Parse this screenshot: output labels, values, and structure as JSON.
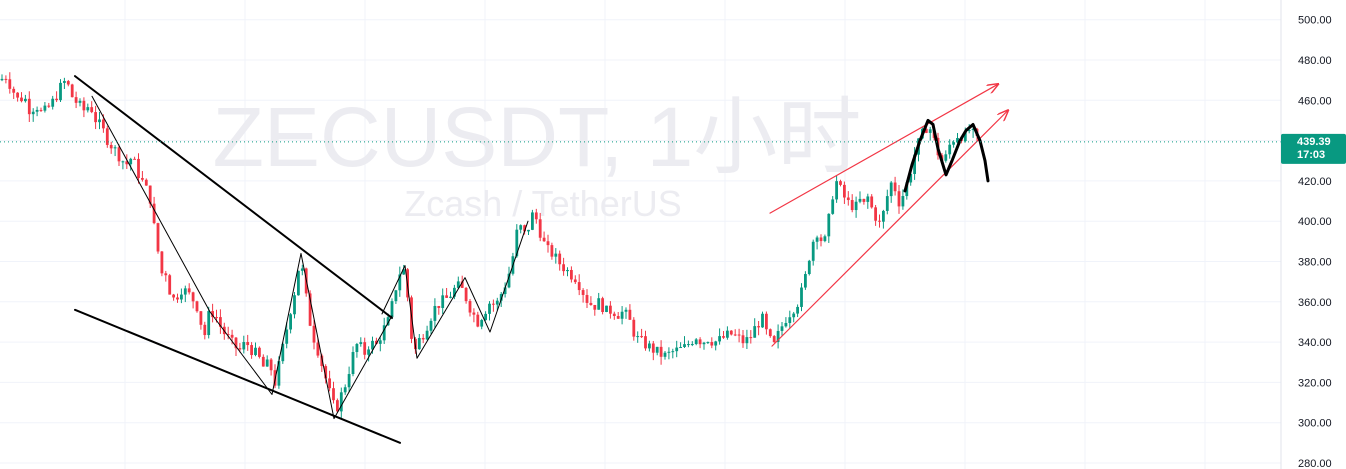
{
  "watermark": {
    "title": "ZECUSDT, 1小时",
    "subtitle": "Zcash / TetherUS"
  },
  "price_axis": {
    "current_price": "439.39",
    "countdown": "17:03"
  },
  "colors": {
    "up": "#089981",
    "down": "#f23645",
    "grid": "#f0f3fa",
    "drawing_black": "#000000",
    "drawing_red": "#f23645",
    "price_tag": "#089981"
  },
  "chart_data": {
    "type": "candlestick",
    "symbol": "ZECUSDT",
    "interval": "1小时",
    "ylim": [
      280,
      510
    ],
    "y_ticks": [
      "500.00",
      "480.00",
      "460.00",
      "440.00",
      "420.00",
      "400.00",
      "380.00",
      "360.00",
      "340.00",
      "320.00",
      "300.00",
      "280.00"
    ],
    "grid": true,
    "last_price": 439.39,
    "close_path": [
      [
        0,
        470
      ],
      [
        6,
        472
      ],
      [
        12,
        466
      ],
      [
        18,
        460
      ],
      [
        24,
        462
      ],
      [
        30,
        455
      ],
      [
        36,
        458
      ],
      [
        42,
        453
      ],
      [
        48,
        456
      ],
      [
        54,
        460
      ],
      [
        60,
        466
      ],
      [
        66,
        470
      ],
      [
        72,
        462
      ],
      [
        78,
        458
      ],
      [
        84,
        455
      ],
      [
        90,
        458
      ],
      [
        96,
        450
      ],
      [
        102,
        446
      ],
      [
        108,
        440
      ],
      [
        114,
        436
      ],
      [
        120,
        432
      ],
      [
        126,
        428
      ],
      [
        132,
        432
      ],
      [
        138,
        424
      ],
      [
        144,
        418
      ],
      [
        150,
        412
      ],
      [
        153,
        400
      ],
      [
        156,
        392
      ],
      [
        160,
        378
      ],
      [
        163,
        372
      ],
      [
        166,
        375
      ],
      [
        170,
        365
      ],
      [
        175,
        360
      ],
      [
        180,
        367
      ],
      [
        186,
        365
      ],
      [
        192,
        362
      ],
      [
        198,
        357
      ],
      [
        204,
        342
      ],
      [
        210,
        356
      ],
      [
        216,
        353
      ],
      [
        222,
        346
      ],
      [
        228,
        342
      ],
      [
        234,
        338
      ],
      [
        240,
        336
      ],
      [
        246,
        340
      ],
      [
        252,
        336
      ],
      [
        258,
        333
      ],
      [
        264,
        327
      ],
      [
        270,
        330
      ],
      [
        274,
        318
      ],
      [
        278,
        326
      ],
      [
        284,
        340
      ],
      [
        290,
        355
      ],
      [
        296,
        368
      ],
      [
        300,
        382
      ],
      [
        304,
        370
      ],
      [
        308,
        355
      ],
      [
        312,
        345
      ],
      [
        318,
        336
      ],
      [
        324,
        325
      ],
      [
        328,
        318
      ],
      [
        332,
        310
      ],
      [
        336,
        306
      ],
      [
        340,
        312
      ],
      [
        346,
        320
      ],
      [
        352,
        332
      ],
      [
        358,
        340
      ],
      [
        364,
        334
      ],
      [
        370,
        340
      ],
      [
        376,
        338
      ],
      [
        382,
        345
      ],
      [
        388,
        350
      ],
      [
        393,
        360
      ],
      [
        397,
        370
      ],
      [
        402,
        378
      ],
      [
        406,
        372
      ],
      [
        410,
        348
      ],
      [
        414,
        334
      ],
      [
        418,
        340
      ],
      [
        424,
        345
      ],
      [
        430,
        352
      ],
      [
        436,
        358
      ],
      [
        442,
        360
      ],
      [
        448,
        362
      ],
      [
        454,
        366
      ],
      [
        460,
        368
      ],
      [
        466,
        362
      ],
      [
        472,
        355
      ],
      [
        478,
        350
      ],
      [
        484,
        355
      ],
      [
        490,
        360
      ],
      [
        496,
        358
      ],
      [
        502,
        365
      ],
      [
        508,
        372
      ],
      [
        514,
        385
      ],
      [
        518,
        398
      ],
      [
        522,
        396
      ],
      [
        526,
        392
      ],
      [
        530,
        400
      ],
      [
        534,
        405
      ],
      [
        538,
        398
      ],
      [
        542,
        392
      ],
      [
        546,
        386
      ],
      [
        552,
        384
      ],
      [
        558,
        380
      ],
      [
        564,
        377
      ],
      [
        570,
        374
      ],
      [
        576,
        372
      ],
      [
        582,
        366
      ],
      [
        588,
        360
      ],
      [
        594,
        358
      ],
      [
        600,
        360
      ],
      [
        606,
        355
      ],
      [
        612,
        356
      ],
      [
        618,
        354
      ],
      [
        624,
        355
      ],
      [
        630,
        350
      ],
      [
        636,
        342
      ],
      [
        642,
        340
      ],
      [
        648,
        338
      ],
      [
        654,
        336
      ],
      [
        660,
        334
      ],
      [
        666,
        333
      ],
      [
        672,
        335
      ],
      [
        678,
        336
      ],
      [
        684,
        337
      ],
      [
        690,
        340
      ],
      [
        696,
        343
      ],
      [
        702,
        340
      ],
      [
        708,
        342
      ],
      [
        714,
        340
      ],
      [
        720,
        341
      ],
      [
        726,
        343
      ],
      [
        732,
        344
      ],
      [
        738,
        342
      ],
      [
        744,
        340
      ],
      [
        750,
        342
      ],
      [
        756,
        348
      ],
      [
        762,
        352
      ],
      [
        768,
        342
      ],
      [
        774,
        338
      ],
      [
        780,
        346
      ],
      [
        786,
        352
      ],
      [
        792,
        356
      ],
      [
        798,
        360
      ],
      [
        804,
        368
      ],
      [
        808,
        380
      ],
      [
        812,
        388
      ],
      [
        816,
        396
      ],
      [
        820,
        392
      ],
      [
        824,
        388
      ],
      [
        828,
        398
      ],
      [
        832,
        412
      ],
      [
        836,
        420
      ],
      [
        840,
        416
      ],
      [
        844,
        412
      ],
      [
        848,
        409
      ],
      [
        852,
        408
      ],
      [
        856,
        407
      ],
      [
        860,
        410
      ],
      [
        864,
        408
      ],
      [
        868,
        412
      ],
      [
        872,
        406
      ],
      [
        876,
        402
      ],
      [
        880,
        398
      ],
      [
        884,
        405
      ],
      [
        888,
        414
      ],
      [
        892,
        420
      ],
      [
        896,
        415
      ],
      [
        900,
        408
      ],
      [
        904,
        415
      ],
      [
        908,
        420
      ],
      [
        912,
        428
      ],
      [
        916,
        436
      ],
      [
        920,
        440
      ],
      [
        924,
        445
      ],
      [
        928,
        448
      ],
      [
        932,
        444
      ],
      [
        936,
        436
      ],
      [
        940,
        432
      ],
      [
        944,
        428
      ],
      [
        948,
        436
      ],
      [
        952,
        440
      ],
      [
        956,
        442
      ],
      [
        960,
        444
      ],
      [
        964,
        440
      ],
      [
        968,
        446
      ],
      [
        972,
        444
      ],
      [
        976,
        440
      ],
      [
        980,
        439.39
      ]
    ],
    "drawings": [
      {
        "kind": "line",
        "color": "black",
        "width": 2,
        "points": [
          [
            75,
            472
          ],
          [
            392,
            352
          ]
        ]
      },
      {
        "kind": "line",
        "color": "black",
        "width": 2,
        "points": [
          [
            75,
            356
          ],
          [
            400,
            290
          ]
        ]
      },
      {
        "kind": "polyline",
        "color": "black",
        "width": 1,
        "points": [
          [
            92,
            462
          ],
          [
            210,
            355
          ],
          [
            272,
            314
          ],
          [
            301,
            384
          ],
          [
            334,
            302
          ],
          [
            392,
            353
          ]
        ]
      },
      {
        "kind": "polyline",
        "color": "black",
        "width": 1,
        "points": [
          [
            382,
            354
          ],
          [
            405,
            378
          ],
          [
            417,
            332
          ],
          [
            465,
            372
          ],
          [
            490,
            345
          ],
          [
            528,
            400
          ]
        ]
      },
      {
        "kind": "line",
        "color": "red",
        "width": 1.2,
        "points": [
          [
            770,
            404
          ],
          [
            998,
            468
          ]
        ],
        "arrow": true
      },
      {
        "kind": "line",
        "color": "red",
        "width": 1.2,
        "points": [
          [
            772,
            338
          ],
          [
            1008,
            455
          ]
        ],
        "arrow": true
      },
      {
        "kind": "freehand",
        "color": "black",
        "width": 3,
        "points": [
          [
            905,
            415
          ],
          [
            912,
            428
          ],
          [
            920,
            440
          ],
          [
            928,
            450
          ],
          [
            933,
            448
          ],
          [
            938,
            436
          ],
          [
            946,
            423
          ],
          [
            952,
            430
          ],
          [
            960,
            440
          ],
          [
            966,
            445
          ],
          [
            973,
            448
          ],
          [
            980,
            440
          ],
          [
            985,
            430
          ],
          [
            988,
            420
          ]
        ]
      }
    ]
  }
}
